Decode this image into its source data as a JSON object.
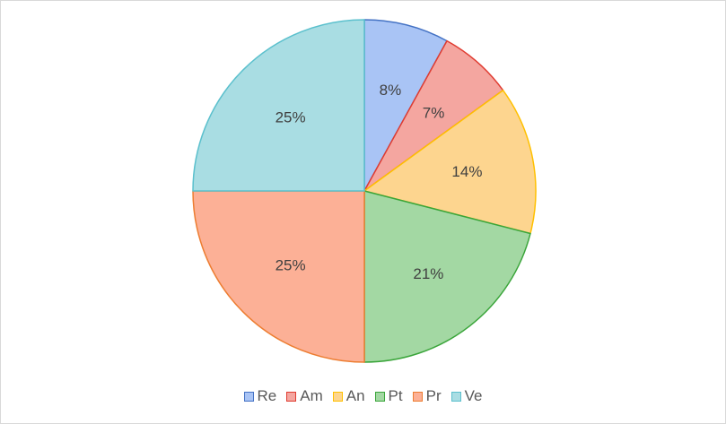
{
  "chart_data": {
    "type": "pie",
    "categories": [
      "Re",
      "Am",
      "An",
      "Pt",
      "Pr",
      "Ve"
    ],
    "values": [
      8,
      7,
      14,
      21,
      25,
      25
    ],
    "labels": [
      "8%",
      "7%",
      "14%",
      "21%",
      "25%",
      "25%"
    ],
    "fill_colors": [
      "#a9c4f5",
      "#f4a6a0",
      "#fdd58f",
      "#a3d8a3",
      "#fcb096",
      "#a9dde3"
    ],
    "stroke_colors": [
      "#4472c4",
      "#e03c31",
      "#ffc000",
      "#3aa53a",
      "#ed7d31",
      "#5bc0cd"
    ],
    "legend_position": "bottom",
    "title": ""
  }
}
